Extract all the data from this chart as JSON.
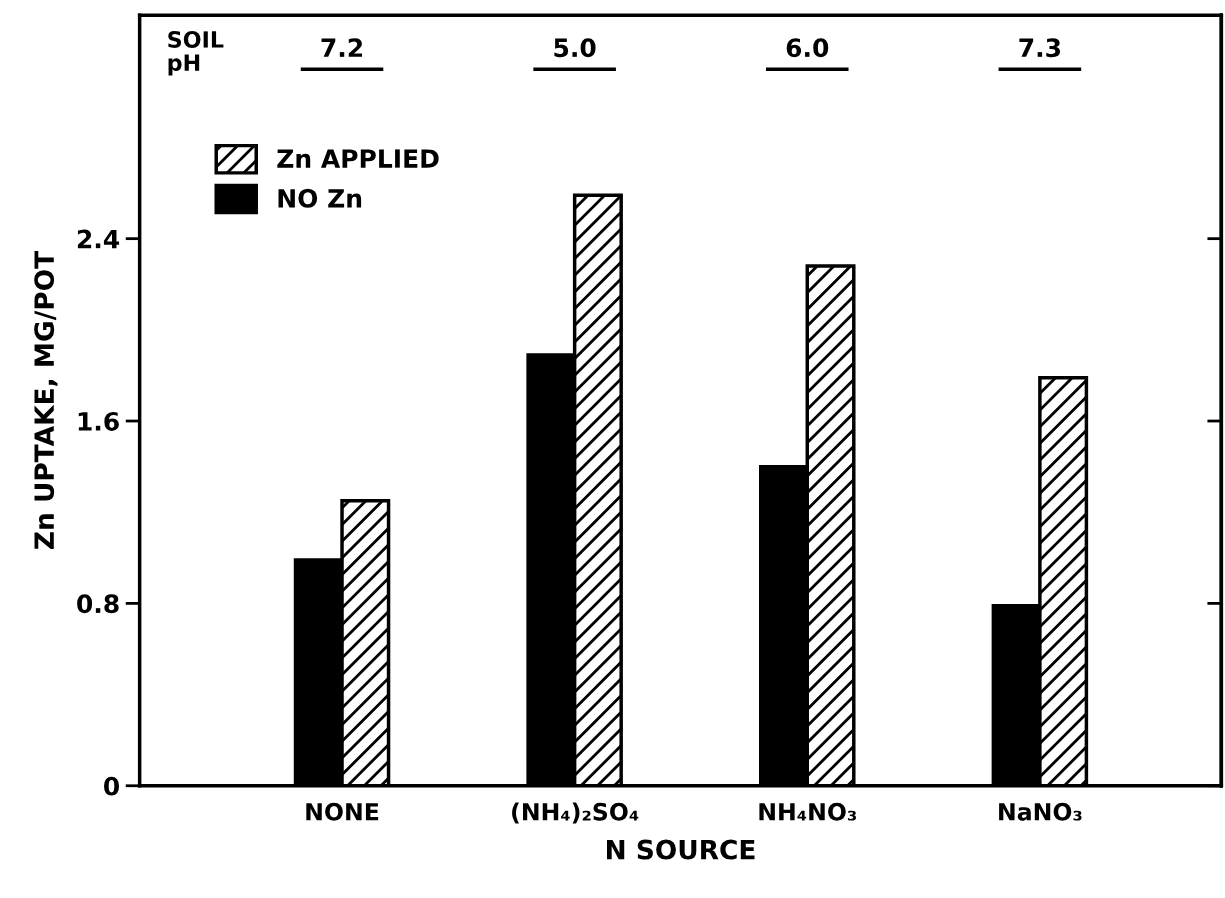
{
  "chart_data": {
    "type": "bar",
    "xlabel": "N SOURCE",
    "ylabel": "Zn UPTAKE, MG/POT",
    "categories": [
      "NONE",
      "(NH₄)₂SO₄",
      "NH₄NO₃",
      "NaNO₃"
    ],
    "series": [
      {
        "name": "NO Zn",
        "color": "#000000",
        "values": [
          0.99,
          1.89,
          1.4,
          0.79
        ]
      },
      {
        "name": "Zn APPLIED",
        "color": "#000000",
        "values": [
          1.25,
          2.59,
          2.28,
          1.79
        ]
      }
    ],
    "ylim": [
      0,
      3.38
    ],
    "yticks": [
      0,
      0.8,
      1.6,
      2.4
    ],
    "legend": "top left",
    "grid": false,
    "annotations": [
      "SOIL\npH",
      "7.2",
      "5.0",
      "6.0",
      "7.3"
    ]
  }
}
